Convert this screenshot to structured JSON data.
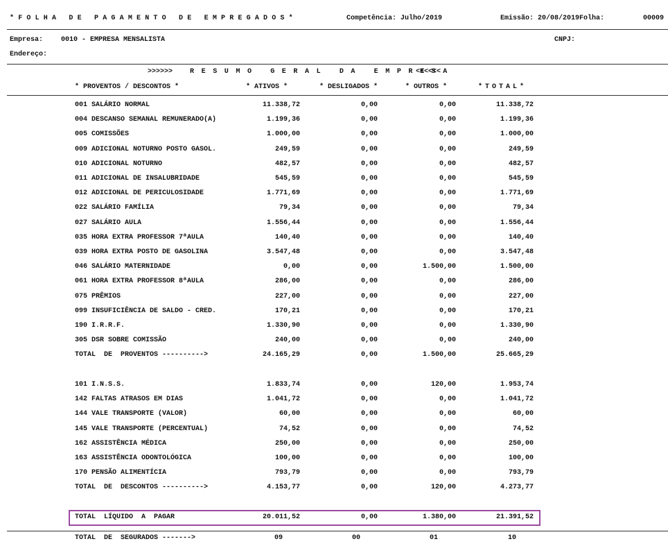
{
  "header": {
    "title": "*FOLHA DE PAGAMENTO DE EMPREGADOS*",
    "competencia": "Competência: Julho/2019",
    "emissao": "Emissão: 20/08/2019",
    "folha_label": "Folha:",
    "folha": "00009"
  },
  "empresa": {
    "label": "Empresa:",
    "value": "0010 - EMPRESA MENSALISTA",
    "cnpj": "CNPJ:",
    "endereco": "Endereço:"
  },
  "resumo": {
    "left": ">>>>>>",
    "title": "RESUMO GERAL DA EMPRESA",
    "right": "<<<<<<"
  },
  "columns": [
    "* PROVENTOS / DESCONTOS *",
    "* ATIVOS *",
    "* DESLIGADOS *",
    "* OUTROS *",
    "*TOTAL*"
  ],
  "proventos": [
    [
      "001 SALÁRIO NORMAL",
      "11.338,72",
      "0,00",
      "0,00",
      "11.338,72"
    ],
    [
      "004 DESCANSO SEMANAL REMUNERADO(A)",
      "1.199,36",
      "0,00",
      "0,00",
      "1.199,36"
    ],
    [
      "005 COMISSÕES",
      "1.000,00",
      "0,00",
      "0,00",
      "1.000,00"
    ],
    [
      "009 ADICIONAL NOTURNO POSTO GASOL.",
      "249,59",
      "0,00",
      "0,00",
      "249,59"
    ],
    [
      "010 ADICIONAL NOTURNO",
      "482,57",
      "0,00",
      "0,00",
      "482,57"
    ],
    [
      "011 ADICIONAL DE INSALUBRIDADE",
      "545,59",
      "0,00",
      "0,00",
      "545,59"
    ],
    [
      "012 ADICIONAL DE PERICULOSIDADE",
      "1.771,69",
      "0,00",
      "0,00",
      "1.771,69"
    ],
    [
      "022 SALÁRIO FAMÍLIA",
      "79,34",
      "0,00",
      "0,00",
      "79,34"
    ],
    [
      "027 SALÁRIO AULA",
      "1.556,44",
      "0,00",
      "0,00",
      "1.556,44"
    ],
    [
      "035 HORA EXTRA PROFESSOR 7ªAULA",
      "140,40",
      "0,00",
      "0,00",
      "140,40"
    ],
    [
      "039 HORA EXTRA POSTO DE GASOLINA",
      "3.547,48",
      "0,00",
      "0,00",
      "3.547,48"
    ],
    [
      "046 SALÁRIO MATERNIDADE",
      "0,00",
      "0,00",
      "1.500,00",
      "1.500,00"
    ],
    [
      "061 HORA EXTRA PROFESSOR 8ªAULA",
      "286,00",
      "0,00",
      "0,00",
      "286,00"
    ],
    [
      "075 PRÊMIOS",
      "227,00",
      "0,00",
      "0,00",
      "227,00"
    ],
    [
      "099 INSUFICIÊNCIA DE SALDO - CRED.",
      "170,21",
      "0,00",
      "0,00",
      "170,21"
    ],
    [
      "190 I.R.R.F.",
      "1.330,90",
      "0,00",
      "0,00",
      "1.330,90"
    ],
    [
      "305 DSR SOBRE COMISSÃO",
      "240,00",
      "0,00",
      "0,00",
      "240,00"
    ],
    [
      "TOTAL  DE  PROVENTOS ---------->",
      "24.165,29",
      "0,00",
      "1.500,00",
      "25.665,29"
    ]
  ],
  "descontos": [
    [
      "101 I.N.S.S.",
      "1.833,74",
      "0,00",
      "120,00",
      "1.953,74"
    ],
    [
      "142 FALTAS ATRASOS EM DIAS",
      "1.041,72",
      "0,00",
      "0,00",
      "1.041,72"
    ],
    [
      "144 VALE TRANSPORTE (VALOR)",
      "60,00",
      "0,00",
      "0,00",
      "60,00"
    ],
    [
      "145 VALE TRANSPORTE (PERCENTUAL)",
      "74,52",
      "0,00",
      "0,00",
      "74,52"
    ],
    [
      "162 ASSISTÊNCIA MÉDICA",
      "250,00",
      "0,00",
      "0,00",
      "250,00"
    ],
    [
      "163 ASSISTÊNCIA ODONTOLÓGICA",
      "100,00",
      "0,00",
      "0,00",
      "100,00"
    ],
    [
      "170 PENSÃO ALIMENTÍCIA",
      "793,79",
      "0,00",
      "0,00",
      "793,79"
    ],
    [
      "TOTAL  DE  DESCONTOS ---------->",
      "4.153,77",
      "0,00",
      "120,00",
      "4.273,77"
    ]
  ],
  "liquido": [
    "TOTAL  LÍQUIDO  A  PAGAR",
    "20.011,52",
    "0,00",
    "1.380,00",
    "21.391,52"
  ],
  "segurados": [
    "TOTAL  DE  SEGURADOS ------->",
    "09",
    "00",
    "01",
    "10"
  ]
}
